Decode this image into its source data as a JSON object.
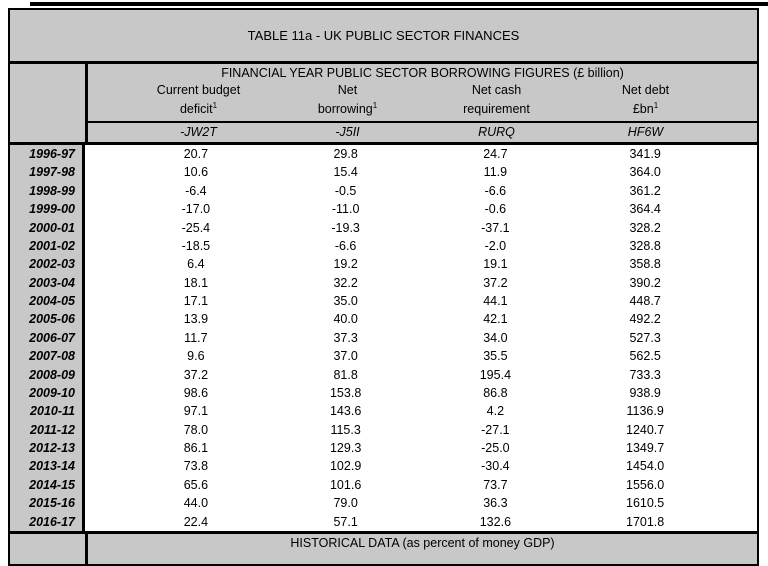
{
  "title": "TABLE 11a - UK PUBLIC SECTOR FINANCES",
  "table": {
    "section_title": "FINANCIAL YEAR PUBLIC SECTOR BORROWING FIGURES (£ billion)",
    "columns": [
      {
        "line1": "Current budget",
        "line2": "deficit",
        "sup": "1",
        "code": "-JW2T"
      },
      {
        "line1": "Net",
        "line2": "borrowing",
        "sup": "1",
        "code": "-J5II"
      },
      {
        "line1": "Net cash",
        "line2": "requirement",
        "sup": "",
        "code": "RURQ"
      },
      {
        "line1": "Net debt",
        "line2": "£bn",
        "sup": "1",
        "code": "HF6W"
      }
    ],
    "rows": [
      {
        "year": "1996-97",
        "values": [
          "20.7",
          "29.8",
          "24.7",
          "341.9"
        ]
      },
      {
        "year": "1997-98",
        "values": [
          "10.6",
          "15.4",
          "11.9",
          "364.0"
        ]
      },
      {
        "year": "1998-99",
        "values": [
          "-6.4",
          "-0.5",
          "-6.6",
          "361.2"
        ]
      },
      {
        "year": "1999-00",
        "values": [
          "-17.0",
          "-11.0",
          "-0.6",
          "364.4"
        ]
      },
      {
        "year": "2000-01",
        "values": [
          "-25.4",
          "-19.3",
          "-37.1",
          "328.2"
        ]
      },
      {
        "year": "2001-02",
        "values": [
          "-18.5",
          "-6.6",
          "-2.0",
          "328.8"
        ]
      },
      {
        "year": "2002-03",
        "values": [
          "6.4",
          "19.2",
          "19.1",
          "358.8"
        ]
      },
      {
        "year": "2003-04",
        "values": [
          "18.1",
          "32.2",
          "37.2",
          "390.2"
        ]
      },
      {
        "year": "2004-05",
        "values": [
          "17.1",
          "35.0",
          "44.1",
          "448.7"
        ]
      },
      {
        "year": "2005-06",
        "values": [
          "13.9",
          "40.0",
          "42.1",
          "492.2"
        ]
      },
      {
        "year": "2006-07",
        "values": [
          "11.7",
          "37.3",
          "34.0",
          "527.3"
        ]
      },
      {
        "year": "2007-08",
        "values": [
          "9.6",
          "37.0",
          "35.5",
          "562.5"
        ]
      },
      {
        "year": "2008-09",
        "values": [
          "37.2",
          "81.8",
          "195.4",
          "733.3"
        ]
      },
      {
        "year": "2009-10",
        "values": [
          "98.6",
          "153.8",
          "86.8",
          "938.9"
        ]
      },
      {
        "year": "2010-11",
        "values": [
          "97.1",
          "143.6",
          "4.2",
          "1136.9"
        ]
      },
      {
        "year": "2011-12",
        "values": [
          "78.0",
          "115.3",
          "-27.1",
          "1240.7"
        ]
      },
      {
        "year": "2012-13",
        "values": [
          "86.1",
          "129.3",
          "-25.0",
          "1349.7"
        ]
      },
      {
        "year": "2013-14",
        "values": [
          "73.8",
          "102.9",
          "-30.4",
          "1454.0"
        ]
      },
      {
        "year": "2014-15",
        "values": [
          "65.6",
          "101.6",
          "73.7",
          "1556.0"
        ]
      },
      {
        "year": "2015-16",
        "values": [
          "44.0",
          "79.0",
          "36.3",
          "1610.5"
        ]
      },
      {
        "year": "2016-17",
        "values": [
          "22.4",
          "57.1",
          "132.6",
          "1701.8"
        ]
      }
    ],
    "footer_label": "HISTORICAL DATA (as percent of money GDP)"
  },
  "colors": {
    "header_bg": "#c8c8c8",
    "border": "#000000",
    "data_bg": "#ffffff"
  }
}
